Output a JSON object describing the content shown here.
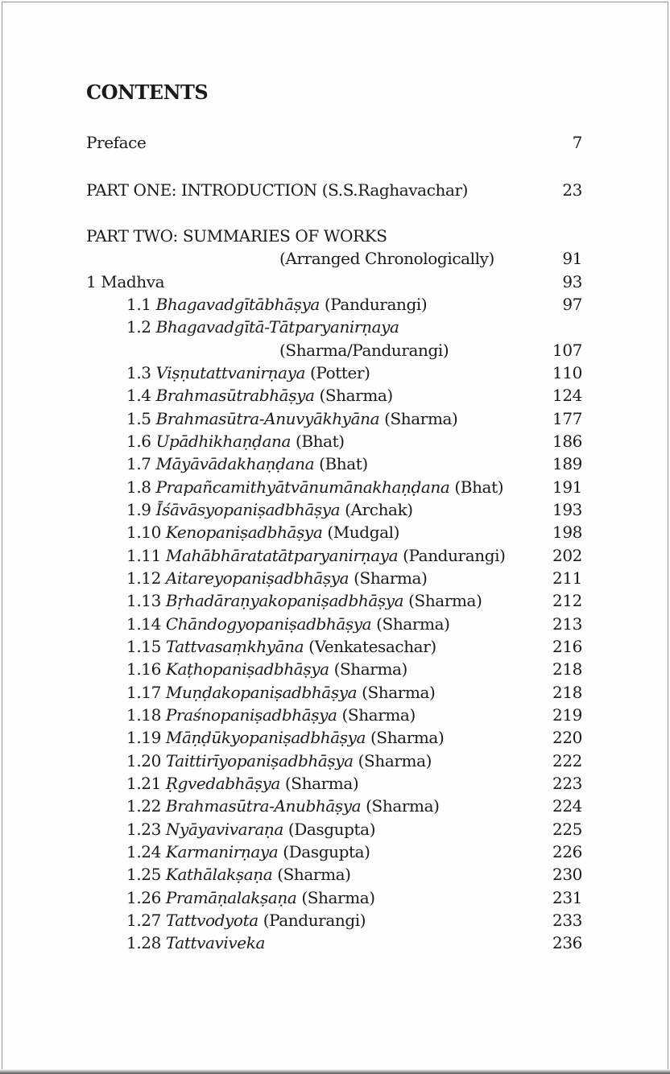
{
  "heading": "CONTENTS",
  "entries": [
    {
      "num": "",
      "title": "",
      "text": "Preface",
      "page": "7",
      "level": 0
    },
    {
      "num": "",
      "title": "",
      "text": "PART ONE:  INTRODUCTION (S.S.Raghavachar)",
      "page": "23",
      "level": 0
    },
    {
      "num": "",
      "title": "",
      "text": "PART TWO:  SUMMARIES OF WORKS",
      "page": "",
      "level": 0
    },
    {
      "num": "",
      "title": "",
      "text": "(Arranged Chronologically)",
      "page": "91",
      "level": 3
    },
    {
      "num": "1",
      "title": "",
      "text": "Madhva",
      "page": "93",
      "level": 0
    },
    {
      "num": "1.1",
      "title": "Bhagavadgītābhāṣya",
      "text": "(Pandurangi)",
      "page": "97",
      "level": 1
    },
    {
      "num": "1.2",
      "title": "Bhagavadgītā-Tātparyanirṇaya",
      "text": "",
      "page": "",
      "level": 1
    },
    {
      "num": "",
      "title": "",
      "text": "(Sharma/Pandurangi)",
      "page": "107",
      "level": 3
    },
    {
      "num": "1.3",
      "title": "Viṣṇutattvanirṇaya",
      "text": "(Potter)",
      "page": "110",
      "level": 1
    },
    {
      "num": "1.4",
      "title": "Brahmasūtrabhāṣya",
      "text": "(Sharma)",
      "page": "124",
      "level": 1
    },
    {
      "num": "1.5",
      "title": "Brahmasūtra-Anuvyākhyāna",
      "text": "(Sharma)",
      "page": "177",
      "level": 1
    },
    {
      "num": "1.6",
      "title": "Upādhikhaṇḍana",
      "text": "(Bhat)",
      "page": "186",
      "level": 1
    },
    {
      "num": "1.7",
      "title": "Māyāvādakhaṇḍana",
      "text": "(Bhat)",
      "page": "189",
      "level": 1
    },
    {
      "num": "1.8",
      "title": "Prapañcamithyātvānumānakhaṇḍana",
      "text": "(Bhat)",
      "page": "191",
      "level": 1
    },
    {
      "num": "1.9",
      "title": "Īśāvāsyopaniṣadbhāṣya",
      "text": "(Archak)",
      "page": "193",
      "level": 1
    },
    {
      "num": "1.10",
      "title": "Kenopaniṣadbhāṣya",
      "text": "(Mudgal)",
      "page": "198",
      "level": 1
    },
    {
      "num": "1.11",
      "title": "Mahābhāratatātparyanirṇaya",
      "text": "(Pandurangi)",
      "page": "202",
      "level": 1
    },
    {
      "num": "1.12",
      "title": "Aitareyopaniṣadbhāṣya",
      "text": "(Sharma)",
      "page": "211",
      "level": 1
    },
    {
      "num": "1.13",
      "title": "Bṛhadāraṇyakopaniṣadbhāṣya",
      "text": "(Sharma)",
      "page": "212",
      "level": 1
    },
    {
      "num": "1.14",
      "title": "Chāndogyopaniṣadbhāṣya",
      "text": "(Sharma)",
      "page": "213",
      "level": 1
    },
    {
      "num": "1.15",
      "title": "Tattvasaṃkhyāna",
      "text": "(Venkatesachar)",
      "page": "216",
      "level": 1
    },
    {
      "num": "1.16",
      "title": "Kaṭhopaniṣadbhāṣya",
      "text": "(Sharma)",
      "page": "218",
      "level": 1
    },
    {
      "num": "1.17",
      "title": "Muṇḍakopaniṣadbhāṣya",
      "text": "(Sharma)",
      "page": "218",
      "level": 1
    },
    {
      "num": "1.18",
      "title": "Praśnopaniṣadbhāṣya",
      "text": "(Sharma)",
      "page": "219",
      "level": 1
    },
    {
      "num": "1.19",
      "title": "Māṇḍūkyopaniṣadbhāṣya",
      "text": "(Sharma)",
      "page": "220",
      "level": 1
    },
    {
      "num": "1.20",
      "title": "Taittirīyopaniṣadbhāṣya",
      "text": "(Sharma)",
      "page": "222",
      "level": 1
    },
    {
      "num": "1.21",
      "title": "Ṛgvedabhāṣya",
      "text": "(Sharma)",
      "page": "223",
      "level": 1
    },
    {
      "num": "1.22",
      "title": "Brahmasūtra-Anubhāṣya",
      "text": "(Sharma)",
      "page": "224",
      "level": 1
    },
    {
      "num": "1.23",
      "title": "Nyāyavivaraṇa",
      "text": "(Dasgupta)",
      "page": "225",
      "level": 1
    },
    {
      "num": "1.24",
      "title": "Karmanirṇaya",
      "text": "(Dasgupta)",
      "page": "226",
      "level": 1
    },
    {
      "num": "1.25",
      "title": "Kathālakṣaṇa",
      "text": "(Sharma)",
      "page": "230",
      "level": 1
    },
    {
      "num": "1.26",
      "title": "Pramāṇalakṣaṇa",
      "text": "(Sharma)",
      "page": "231",
      "level": 1
    },
    {
      "num": "1.27",
      "title": "Tattvodyota",
      "text": "(Pandurangi)",
      "page": "233",
      "level": 1
    },
    {
      "num": "1.28",
      "title": "Tattvaviveka",
      "text": "",
      "page": "236",
      "level": 1
    }
  ]
}
